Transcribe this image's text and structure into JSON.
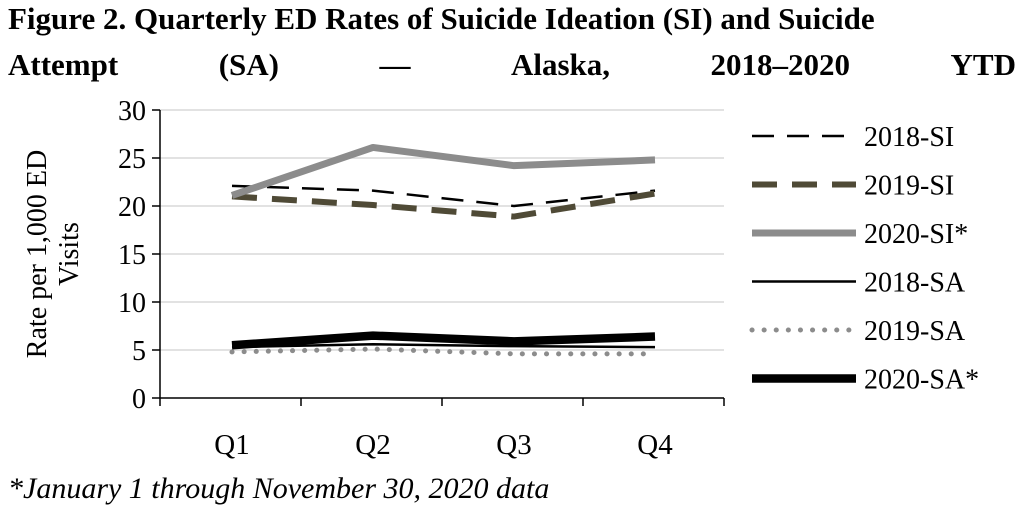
{
  "title": {
    "line1": "Figure 2. Quarterly ED Rates of Suicide Ideation (SI) and Suicide",
    "line2_words": [
      "Attempt",
      "(SA)",
      "—",
      "Alaska,",
      "2018–2020",
      "YTD"
    ]
  },
  "footnote": "*January 1 through November 30, 2020 data",
  "chart_data": {
    "type": "line",
    "title": "Figure 2. Quarterly ED Rates of Suicide Ideation (SI) and Suicide Attempt (SA) — Alaska, 2018–2020 YTD",
    "xlabel": "",
    "ylabel": "Rate per 1,000 ED Visits",
    "ylabel_lines": [
      "Rate per 1,000 ED",
      "Visits"
    ],
    "categories": [
      "Q1",
      "Q2",
      "Q3",
      "Q4"
    ],
    "ylim": [
      0,
      30
    ],
    "yticks": [
      0,
      5,
      10,
      15,
      20,
      25,
      30
    ],
    "grid": true,
    "legend_position": "right",
    "series": [
      {
        "name": "2018-SI",
        "values": [
          22.1,
          21.6,
          20.0,
          21.6
        ],
        "color": "#000000",
        "style": "long-dash",
        "weight": "thin"
      },
      {
        "name": "2019-SI",
        "values": [
          21.0,
          20.1,
          18.9,
          21.3
        ],
        "color": "#4f4a36",
        "style": "dash",
        "weight": "thick"
      },
      {
        "name": "2020-SI*",
        "values": [
          21.1,
          26.1,
          24.2,
          24.8
        ],
        "color": "#8c8c8c",
        "style": "solid",
        "weight": "thick"
      },
      {
        "name": "2018-SA",
        "values": [
          5.3,
          5.6,
          5.4,
          5.3
        ],
        "color": "#000000",
        "style": "solid",
        "weight": "thin"
      },
      {
        "name": "2019-SA",
        "values": [
          4.8,
          5.1,
          4.6,
          4.6
        ],
        "color": "#8c8c8c",
        "style": "dot",
        "weight": "medium"
      },
      {
        "name": "2020-SA*",
        "values": [
          5.5,
          6.5,
          5.9,
          6.4
        ],
        "color": "#000000",
        "style": "solid",
        "weight": "heavy"
      }
    ]
  }
}
